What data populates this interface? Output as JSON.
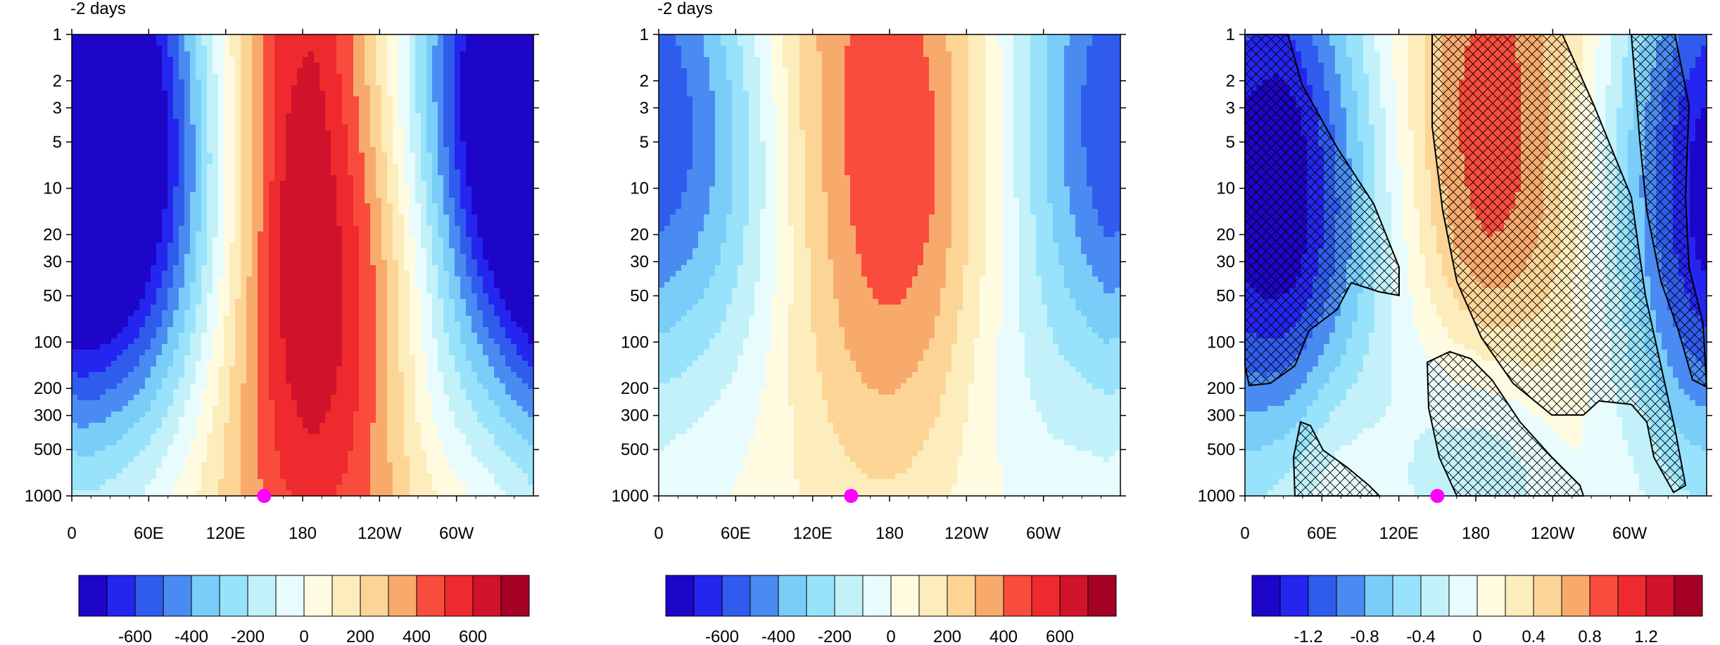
{
  "chart_data": [
    {
      "type": "heatmap",
      "title": "-2 days",
      "xlabel": "",
      "ylabel": "",
      "x_tick_labels": [
        "0",
        "60E",
        "120E",
        "180",
        "120W",
        "60W"
      ],
      "y_tick_labels": [
        "1",
        "2",
        "3",
        "5",
        "10",
        "20",
        "30",
        "50",
        "100",
        "200",
        "300",
        "500",
        "1000"
      ],
      "y_scale": "log",
      "y_direction": "pressure decreasing upward",
      "xlim": [
        0,
        360
      ],
      "ylim": [
        1000,
        1
      ],
      "colorbar_tick_labels": [
        "-600",
        "-400",
        "-200",
        "0",
        "200",
        "400",
        "600"
      ],
      "colorbar_levels": [
        -700,
        -600,
        -500,
        -400,
        -300,
        -200,
        -100,
        0,
        100,
        200,
        300,
        400,
        500,
        600,
        700
      ],
      "marker": {
        "x": 150,
        "y": 1000,
        "color": "#ff00ff"
      },
      "field": [
        {
          "x": 10,
          "y": 4,
          "value": -800,
          "s": 0.5
        },
        {
          "x": 345,
          "y": 4,
          "value": -800,
          "s": 0.55
        },
        {
          "x": 185,
          "y": 5,
          "value": 900,
          "s": 0.7
        },
        {
          "x": 200,
          "y": 80,
          "value": 250,
          "s": 0.45
        },
        {
          "x": 75,
          "y": 40,
          "value": -350,
          "s": 0.4
        },
        {
          "x": 330,
          "y": 200,
          "value": 120,
          "s": 0.4
        },
        {
          "x": 20,
          "y": 300,
          "value": 150,
          "s": 0.35
        },
        {
          "x": 275,
          "y": 300,
          "value": -150,
          "s": 0.2
        }
      ]
    },
    {
      "type": "heatmap",
      "title": "-2 days",
      "xlabel": "",
      "ylabel": "",
      "x_tick_labels": [
        "0",
        "60E",
        "120E",
        "180",
        "120W",
        "60W"
      ],
      "y_tick_labels": [
        "1",
        "2",
        "3",
        "5",
        "10",
        "20",
        "30",
        "50",
        "100",
        "200",
        "300",
        "500",
        "1000"
      ],
      "y_scale": "log",
      "y_direction": "pressure decreasing upward",
      "xlim": [
        0,
        360
      ],
      "ylim": [
        1000,
        1
      ],
      "colorbar_tick_labels": [
        "-600",
        "-400",
        "-200",
        "0",
        "200",
        "400",
        "600"
      ],
      "colorbar_levels": [
        -700,
        -600,
        -500,
        -400,
        -300,
        -200,
        -100,
        0,
        100,
        200,
        300,
        400,
        500,
        600,
        700
      ],
      "marker": {
        "x": 150,
        "y": 1000,
        "color": "#ff00ff"
      },
      "field": [
        {
          "x": 35,
          "y": 5,
          "value": -450,
          "s": 0.45
        },
        {
          "x": 290,
          "y": 3,
          "value": -400,
          "s": 0.55
        },
        {
          "x": 170,
          "y": 3,
          "value": 750,
          "s": 0.55
        },
        {
          "x": 85,
          "y": 40,
          "value": -200,
          "s": 0.45
        },
        {
          "x": 270,
          "y": 200,
          "value": -150,
          "s": 0.3
        },
        {
          "x": 20,
          "y": 300,
          "value": 120,
          "s": 0.35
        },
        {
          "x": 340,
          "y": 200,
          "value": 100,
          "s": 0.35
        },
        {
          "x": 190,
          "y": 60,
          "value": 200,
          "s": 0.4
        }
      ]
    },
    {
      "type": "heatmap",
      "title": "",
      "xlabel": "",
      "ylabel": "",
      "x_tick_labels": [
        "0",
        "60E",
        "120E",
        "180",
        "120W",
        "60W"
      ],
      "y_tick_labels": [
        "1",
        "2",
        "3",
        "5",
        "10",
        "20",
        "30",
        "50",
        "100",
        "200",
        "300",
        "500",
        "1000"
      ],
      "y_scale": "log",
      "y_direction": "pressure decreasing upward",
      "xlim": [
        0,
        360
      ],
      "ylim": [
        1000,
        1
      ],
      "colorbar_tick_labels": [
        "-1.2",
        "-0.8",
        "-0.4",
        "0",
        "0.4",
        "0.8",
        "1.2"
      ],
      "colorbar_levels": [
        -1.4,
        -1.2,
        -1.0,
        -0.8,
        -0.6,
        -0.4,
        -0.2,
        0,
        0.2,
        0.4,
        0.6,
        0.8,
        1.0,
        1.2,
        1.4
      ],
      "marker": {
        "x": 150,
        "y": 1000,
        "color": "#ff00ff"
      },
      "hatching": "cross-hatched regions indicate significance",
      "field": [
        {
          "x": 10,
          "y": 10,
          "value": -1.0,
          "s": 0.5
        },
        {
          "x": 345,
          "y": 10,
          "value": -1.0,
          "s": 0.45
        },
        {
          "x": 220,
          "y": 20,
          "value": 1.0,
          "s": 0.55
        },
        {
          "x": 205,
          "y": 3,
          "value": 0.5,
          "s": 0.55
        },
        {
          "x": 190,
          "y": 700,
          "value": -0.8,
          "s": 0.25
        },
        {
          "x": 60,
          "y": 700,
          "value": 0.4,
          "s": 0.22
        },
        {
          "x": 130,
          "y": 100,
          "value": -0.3,
          "s": 0.45
        }
      ]
    }
  ]
}
